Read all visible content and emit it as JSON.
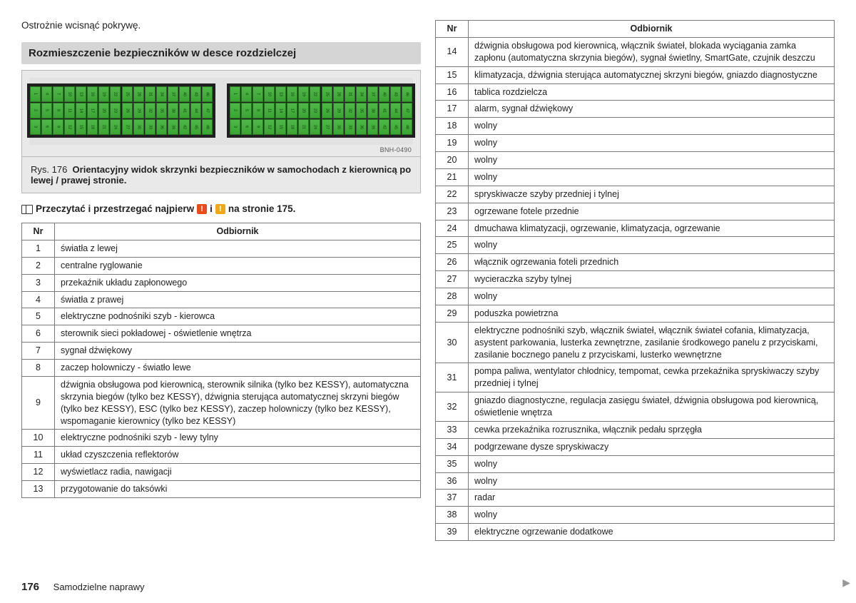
{
  "intro_text": "Ostrożnie wcisnąć pokrywę.",
  "section_title": "Rozmieszczenie bezpieczników w desce rozdzielczej",
  "figure_code": "BNH-0490",
  "caption_prefix": "Rys. 176",
  "caption_bold": "Orientacyjny widok skrzynki bezpieczników w samochodach z kierownicą po lewej / prawej stronie.",
  "read_prefix": "Przeczytać i przestrzegać najpierw",
  "read_mid": "i",
  "read_suffix": "na stronie  175.",
  "th_nr": "Nr",
  "th_desc": "Odbiornik",
  "left_rows": [
    {
      "nr": "1",
      "desc": "światła z lewej"
    },
    {
      "nr": "2",
      "desc": "centralne ryglowanie"
    },
    {
      "nr": "3",
      "desc": "przekaźnik układu zapłonowego"
    },
    {
      "nr": "4",
      "desc": "światła z prawej"
    },
    {
      "nr": "5",
      "desc": "elektryczne podnośniki szyb - kierowca"
    },
    {
      "nr": "6",
      "desc": "sterownik sieci pokładowej - oświetlenie wnętrza"
    },
    {
      "nr": "7",
      "desc": "sygnał dźwiękowy"
    },
    {
      "nr": "8",
      "desc": "zaczep holowniczy - światło lewe"
    },
    {
      "nr": "9",
      "desc": "dźwignia obsługowa pod kierownicą, sterownik silnika (tylko bez KESSY), automatyczna skrzynia biegów (tylko bez KESSY), dźwignia sterująca automatycznej skrzyni biegów (tylko bez KESSY), ESC (tylko bez KESSY), zaczep holowniczy (tylko bez KESSY), wspomaganie kierownicy (tylko bez KESSY)"
    },
    {
      "nr": "10",
      "desc": "elektryczne podnośniki szyb - lewy tylny"
    },
    {
      "nr": "11",
      "desc": "układ czyszczenia reflektorów"
    },
    {
      "nr": "12",
      "desc": "wyświetlacz radia, nawigacji"
    },
    {
      "nr": "13",
      "desc": "przygotowanie do taksówki"
    }
  ],
  "right_rows": [
    {
      "nr": "14",
      "desc": "dźwignia obsługowa pod kierownicą, włącznik świateł, blokada wyciągania zamka zapłonu (automatyczna skrzynia biegów), sygnał świetlny, SmartGate, czujnik deszczu"
    },
    {
      "nr": "15",
      "desc": "klimatyzacja, dźwignia sterująca automatycznej skrzyni biegów, gniazdo diagnostyczne"
    },
    {
      "nr": "16",
      "desc": "tablica rozdzielcza"
    },
    {
      "nr": "17",
      "desc": "alarm, sygnał dźwiękowy"
    },
    {
      "nr": "18",
      "desc": "wolny"
    },
    {
      "nr": "19",
      "desc": "wolny"
    },
    {
      "nr": "20",
      "desc": "wolny"
    },
    {
      "nr": "21",
      "desc": "wolny"
    },
    {
      "nr": "22",
      "desc": "spryskiwacze szyby przedniej i tylnej"
    },
    {
      "nr": "23",
      "desc": "ogrzewane fotele przednie"
    },
    {
      "nr": "24",
      "desc": "dmuchawa klimatyzacji, ogrzewanie, klimatyzacja, ogrzewanie"
    },
    {
      "nr": "25",
      "desc": "wolny"
    },
    {
      "nr": "26",
      "desc": "włącznik ogrzewania foteli przednich"
    },
    {
      "nr": "27",
      "desc": "wycieraczka szyby tylnej"
    },
    {
      "nr": "28",
      "desc": "wolny"
    },
    {
      "nr": "29",
      "desc": "poduszka powietrzna"
    },
    {
      "nr": "30",
      "desc": "elektryczne podnośniki szyb, włącznik świateł, włącznik świateł cofania, klimatyzacja, asystent parkowania, lusterka zewnętrzne, zasilanie środkowego panelu z przyciskami, zasilanie bocznego panelu z przyciskami, lusterko wewnętrzne"
    },
    {
      "nr": "31",
      "desc": "pompa paliwa, wentylator chłodnicy, tempomat, cewka przekaźnika spryskiwaczy szyby przedniej i tylnej"
    },
    {
      "nr": "32",
      "desc": "gniazdo diagnostyczne, regulacja zasięgu świateł, dźwignia obsługowa pod kierownicą, oświetlenie wnętrza"
    },
    {
      "nr": "33",
      "desc": "cewka przekaźnika rozrusznika, włącznik pedału sprzęgła"
    },
    {
      "nr": "34",
      "desc": "podgrzewane dysze spryskiwaczy"
    },
    {
      "nr": "35",
      "desc": "wolny"
    },
    {
      "nr": "36",
      "desc": "wolny"
    },
    {
      "nr": "37",
      "desc": "radar"
    },
    {
      "nr": "38",
      "desc": "wolny"
    },
    {
      "nr": "39",
      "desc": "elektryczne ogrzewanie dodatkowe"
    }
  ],
  "page_number": "176",
  "footer_text": "Samodzielne naprawy"
}
